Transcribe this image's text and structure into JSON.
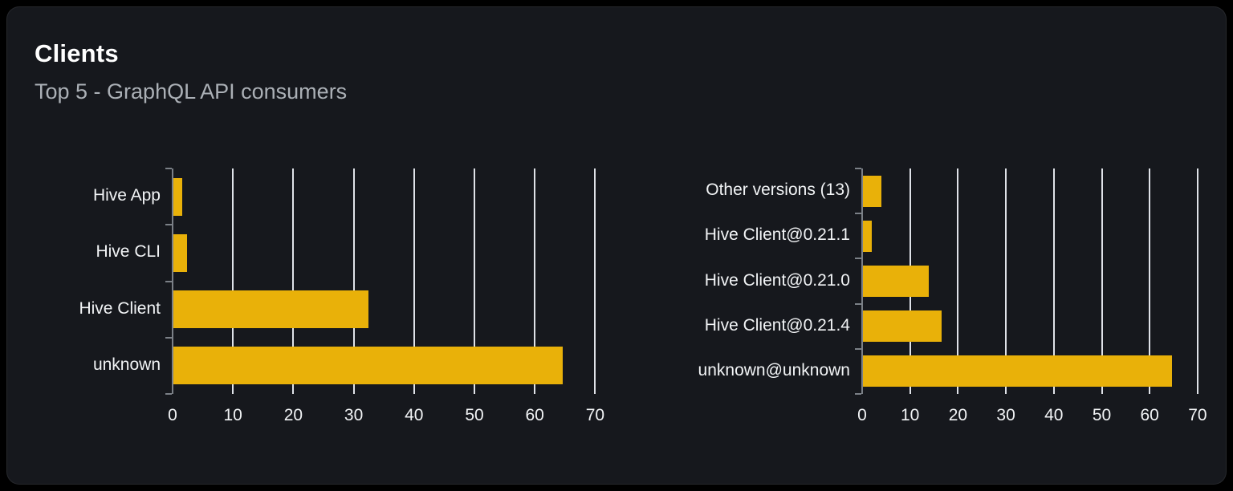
{
  "card": {
    "title": "Clients",
    "subtitle": "Top 5 - GraphQL API consumers"
  },
  "colors": {
    "page_bg": "#000000",
    "card_bg": "#16181d",
    "bar": "#e9b109",
    "grid": "#dfe2e8",
    "axis": "#7b8087",
    "text": "#f2f4f6",
    "subtitle": "#abb0b6"
  },
  "chart_data": [
    {
      "type": "bar",
      "orientation": "horizontal",
      "title": "",
      "xlabel": "",
      "ylabel": "",
      "categories": [
        "Hive App",
        "Hive CLI",
        "Hive Client",
        "unknown"
      ],
      "values": [
        1.5,
        2.2,
        32.3,
        64.5
      ],
      "xlim": [
        0,
        70
      ],
      "xticks": [
        0,
        10,
        20,
        30,
        40,
        50,
        60,
        70
      ],
      "grid": true,
      "legend": "none"
    },
    {
      "type": "bar",
      "orientation": "horizontal",
      "title": "",
      "xlabel": "",
      "ylabel": "",
      "categories": [
        "Other versions (13)",
        "Hive Client@0.21.1",
        "Hive Client@0.21.0",
        "Hive Client@0.21.4",
        "unknown@unknown"
      ],
      "values": [
        3.9,
        1.9,
        13.8,
        16.4,
        64.5
      ],
      "xlim": [
        0,
        70
      ],
      "xticks": [
        0,
        10,
        20,
        30,
        40,
        50,
        60,
        70
      ],
      "grid": true,
      "legend": "none"
    }
  ]
}
